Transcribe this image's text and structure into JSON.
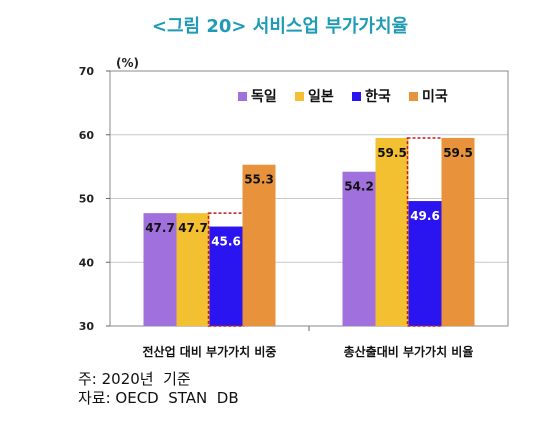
{
  "title": "<그림 20> 서비스업  부가가치율",
  "notes": {
    "note": "주: 2020년  기준",
    "source": "자료: OECD  STAN  DB"
  },
  "colors": {
    "독일": "#a070dc",
    "일본": "#f2c030",
    "한국": "#2a14f0",
    "미국": "#e8933c",
    "highlight_border": "#c0182a"
  },
  "chart_data": {
    "type": "bar",
    "unit": "(%)",
    "categories": [
      "전산업 대비 부가가치 비중",
      "총산출대비 부가가치 비율"
    ],
    "series": [
      {
        "name": "독일",
        "values": [
          47.7,
          54.2
        ]
      },
      {
        "name": "일본",
        "values": [
          47.7,
          59.5
        ]
      },
      {
        "name": "한국",
        "values": [
          45.6,
          49.6
        ]
      },
      {
        "name": "미국",
        "values": [
          55.3,
          59.5
        ]
      }
    ],
    "value_labels": [
      [
        "47.7",
        "54.2"
      ],
      [
        "47.7",
        "59.5"
      ],
      [
        "45.6",
        "49.6"
      ],
      [
        "55.3",
        "59.5"
      ]
    ],
    "highlight_series": "한국",
    "highlight_reference": "일본",
    "ylim": [
      30,
      70
    ],
    "yticks": [
      "30",
      "40",
      "50",
      "60",
      "70"
    ],
    "grid": true,
    "legend": "top-right"
  }
}
